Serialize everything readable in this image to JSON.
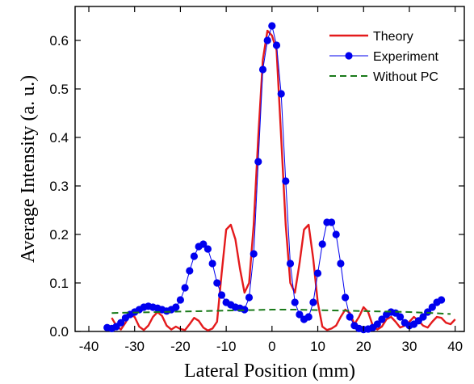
{
  "chart_data": {
    "type": "line",
    "title": "",
    "xlabel": "Lateral Position (mm)",
    "ylabel": "Average Intensity (a. u.)",
    "xlim": [
      -43,
      42
    ],
    "ylim": [
      0.0,
      0.67
    ],
    "xticks": [
      -40,
      -30,
      -20,
      -10,
      0,
      10,
      20,
      30,
      40
    ],
    "yticks": [
      0.0,
      0.1,
      0.2,
      0.3,
      0.4,
      0.5,
      0.6
    ],
    "xtick_labels": [
      "-40",
      "-30",
      "-20",
      "-10",
      "0",
      "10",
      "20",
      "30",
      "40"
    ],
    "ytick_labels": [
      "0.0",
      "0.1",
      "0.2",
      "0.3",
      "0.4",
      "0.5",
      "0.6"
    ],
    "grid": false,
    "legend_position": "top-right",
    "series": [
      {
        "name": "Theory",
        "style": "solid",
        "color": "#e41a1c",
        "x": [
          -35,
          -34,
          -33,
          -32,
          -31,
          -30,
          -29,
          -28,
          -27,
          -26,
          -25,
          -24,
          -23,
          -22,
          -21,
          -20,
          -19,
          -18,
          -17,
          -16,
          -15,
          -14,
          -13,
          -12,
          -11,
          -10,
          -9,
          -8,
          -7,
          -6,
          -5,
          -4,
          -3,
          -2,
          -1,
          0,
          1,
          2,
          3,
          4,
          5,
          6,
          7,
          8,
          9,
          10,
          11,
          12,
          13,
          14,
          15,
          16,
          17,
          18,
          19,
          20,
          21,
          22,
          23,
          24,
          25,
          26,
          27,
          28,
          29,
          30,
          31,
          32,
          33,
          34,
          35,
          36,
          37,
          38,
          39,
          40
        ],
        "y": [
          0.028,
          0.012,
          0.004,
          0.018,
          0.035,
          0.03,
          0.01,
          0.003,
          0.012,
          0.03,
          0.04,
          0.032,
          0.012,
          0.004,
          0.01,
          0.005,
          0.003,
          0.015,
          0.028,
          0.022,
          0.008,
          0.002,
          0.006,
          0.02,
          0.12,
          0.21,
          0.22,
          0.19,
          0.13,
          0.08,
          0.1,
          0.22,
          0.4,
          0.56,
          0.62,
          0.61,
          0.58,
          0.4,
          0.22,
          0.1,
          0.08,
          0.14,
          0.21,
          0.22,
          0.15,
          0.06,
          0.01,
          0.003,
          0.006,
          0.012,
          0.03,
          0.045,
          0.038,
          0.015,
          0.03,
          0.05,
          0.04,
          0.012,
          0.004,
          0.01,
          0.025,
          0.03,
          0.02,
          0.008,
          0.012,
          0.02,
          0.03,
          0.022,
          0.012,
          0.008,
          0.02,
          0.03,
          0.028,
          0.018,
          0.015,
          0.025
        ]
      },
      {
        "name": "Experiment",
        "style": "dotted-markers",
        "color": "#0000ee",
        "x": [
          -36,
          -35,
          -34,
          -33,
          -32,
          -31,
          -30,
          -29,
          -28,
          -27,
          -26,
          -25,
          -24,
          -23,
          -22,
          -21,
          -20,
          -19,
          -18,
          -17,
          -16,
          -15,
          -14,
          -13,
          -12,
          -11,
          -10,
          -9,
          -8,
          -7,
          -6,
          -5,
          -4,
          -3,
          -2,
          -1,
          0,
          1,
          2,
          3,
          4,
          5,
          6,
          7,
          8,
          9,
          10,
          11,
          12,
          13,
          14,
          15,
          16,
          17,
          18,
          19,
          20,
          21,
          22,
          23,
          24,
          25,
          26,
          27,
          28,
          29,
          30,
          31,
          32,
          33,
          34,
          35,
          36,
          37
        ],
        "y": [
          0.008,
          0.006,
          0.01,
          0.018,
          0.028,
          0.035,
          0.04,
          0.045,
          0.05,
          0.052,
          0.05,
          0.048,
          0.045,
          0.042,
          0.045,
          0.05,
          0.065,
          0.09,
          0.125,
          0.155,
          0.175,
          0.18,
          0.17,
          0.14,
          0.1,
          0.075,
          0.06,
          0.055,
          0.05,
          0.048,
          0.045,
          0.07,
          0.16,
          0.35,
          0.54,
          0.6,
          0.63,
          0.59,
          0.49,
          0.31,
          0.14,
          0.06,
          0.035,
          0.025,
          0.03,
          0.06,
          0.12,
          0.18,
          0.225,
          0.225,
          0.2,
          0.14,
          0.07,
          0.03,
          0.012,
          0.006,
          0.004,
          0.005,
          0.008,
          0.015,
          0.025,
          0.035,
          0.04,
          0.038,
          0.03,
          0.018,
          0.012,
          0.015,
          0.022,
          0.03,
          0.04,
          0.05,
          0.06,
          0.065
        ]
      },
      {
        "name": "Without PC",
        "style": "dashed",
        "color": "#1a7a1a",
        "x": [
          -35,
          -30,
          -25,
          -20,
          -15,
          -10,
          -5,
          0,
          5,
          10,
          15,
          20,
          25,
          30,
          35,
          39
        ],
        "y": [
          0.038,
          0.039,
          0.04,
          0.041,
          0.042,
          0.043,
          0.044,
          0.045,
          0.045,
          0.044,
          0.043,
          0.042,
          0.041,
          0.04,
          0.038,
          0.036
        ]
      }
    ]
  }
}
